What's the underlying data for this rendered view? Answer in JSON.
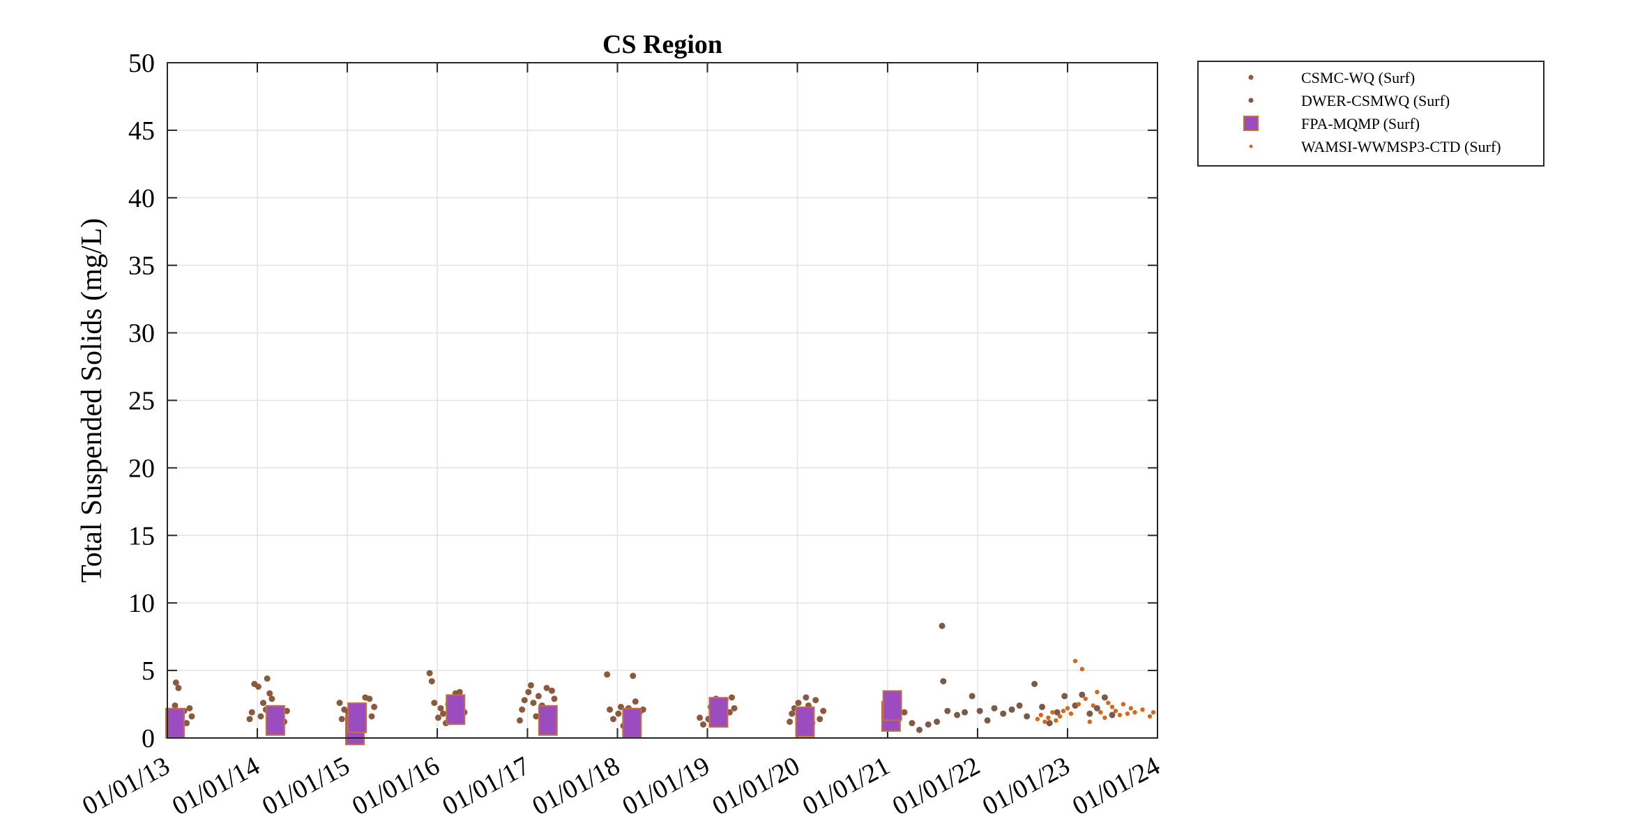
{
  "chart_data": {
    "type": "scatter",
    "title": "CS Region",
    "xlabel": "",
    "ylabel": "Total Suspended Solids (mg/L)",
    "xlim": [
      "2013-01-01",
      "2024-01-01"
    ],
    "ylim": [
      0,
      50
    ],
    "x_tick_labels": [
      "01/01/13",
      "01/01/14",
      "01/01/15",
      "01/01/16",
      "01/01/17",
      "01/01/18",
      "01/01/19",
      "01/01/20",
      "01/01/21",
      "01/01/22",
      "01/01/23",
      "01/01/24"
    ],
    "y_tick_labels": [
      "0",
      "5",
      "10",
      "15",
      "20",
      "25",
      "30",
      "35",
      "40",
      "45",
      "50"
    ],
    "grid": true,
    "legend_position": "outside-top-right",
    "series": [
      {
        "name": "CSMC-WQ (Surf)",
        "marker": "dot",
        "color": "#8b5a3c",
        "points": [
          [
            "2013-01-10",
            1.2
          ],
          [
            "2013-01-20",
            1.8
          ],
          [
            "2013-02-01",
            2.4
          ],
          [
            "2013-02-05",
            4.1
          ],
          [
            "2013-02-15",
            3.7
          ],
          [
            "2013-02-25",
            1.5
          ],
          [
            "2013-03-10",
            2.0
          ],
          [
            "2013-03-20",
            1.1
          ],
          [
            "2013-04-01",
            2.2
          ],
          [
            "2013-04-10",
            1.6
          ],
          [
            "2013-12-01",
            1.4
          ],
          [
            "2013-12-10",
            1.9
          ],
          [
            "2013-12-20",
            4.0
          ],
          [
            "2014-01-05",
            3.8
          ],
          [
            "2014-01-15",
            1.6
          ],
          [
            "2014-01-25",
            2.6
          ],
          [
            "2014-02-05",
            2.1
          ],
          [
            "2014-02-10",
            4.4
          ],
          [
            "2014-02-20",
            3.3
          ],
          [
            "2014-03-01",
            2.9
          ],
          [
            "2014-03-15",
            1.8
          ],
          [
            "2014-04-01",
            2.2
          ],
          [
            "2014-04-20",
            1.2
          ],
          [
            "2014-05-01",
            2.0
          ],
          [
            "2014-12-01",
            2.6
          ],
          [
            "2014-12-10",
            1.4
          ],
          [
            "2014-12-20",
            2.1
          ],
          [
            "2015-01-05",
            1.9
          ],
          [
            "2015-01-15",
            0.9
          ],
          [
            "2015-01-25",
            2.4
          ],
          [
            "2015-02-05",
            1.0
          ],
          [
            "2015-02-15",
            2.2
          ],
          [
            "2015-03-01",
            1.5
          ],
          [
            "2015-03-15",
            3.0
          ],
          [
            "2015-04-01",
            2.9
          ],
          [
            "2015-04-10",
            1.6
          ],
          [
            "2015-04-20",
            2.3
          ],
          [
            "2015-12-01",
            4.8
          ],
          [
            "2015-12-10",
            4.2
          ],
          [
            "2015-12-20",
            2.6
          ],
          [
            "2016-01-05",
            1.5
          ],
          [
            "2016-01-15",
            2.2
          ],
          [
            "2016-01-25",
            1.8
          ],
          [
            "2016-02-05",
            1.1
          ],
          [
            "2016-02-15",
            2.5
          ],
          [
            "2016-03-01",
            2.0
          ],
          [
            "2016-03-15",
            3.3
          ],
          [
            "2016-04-01",
            3.4
          ],
          [
            "2016-04-10",
            2.7
          ],
          [
            "2016-04-20",
            1.9
          ],
          [
            "2016-12-01",
            1.3
          ],
          [
            "2016-12-10",
            2.1
          ],
          [
            "2016-12-20",
            2.8
          ],
          [
            "2017-01-05",
            3.4
          ],
          [
            "2017-01-15",
            3.9
          ],
          [
            "2017-01-25",
            2.6
          ],
          [
            "2017-02-05",
            1.6
          ],
          [
            "2017-02-15",
            3.1
          ],
          [
            "2017-03-01",
            2.4
          ],
          [
            "2017-03-10",
            1.2
          ],
          [
            "2017-03-20",
            3.7
          ],
          [
            "2017-04-01",
            2.0
          ],
          [
            "2017-04-10",
            3.5
          ],
          [
            "2017-04-20",
            2.9
          ],
          [
            "2017-11-20",
            4.7
          ],
          [
            "2017-12-01",
            2.1
          ],
          [
            "2017-12-15",
            1.4
          ],
          [
            "2018-01-05",
            1.8
          ],
          [
            "2018-01-15",
            2.3
          ],
          [
            "2018-01-25",
            0.9
          ],
          [
            "2018-02-05",
            1.5
          ],
          [
            "2018-02-15",
            2.2
          ],
          [
            "2018-02-25",
            1.2
          ],
          [
            "2018-03-05",
            4.6
          ],
          [
            "2018-03-15",
            2.7
          ],
          [
            "2018-04-01",
            1.9
          ],
          [
            "2018-04-15",
            2.1
          ],
          [
            "2018-12-01",
            1.5
          ],
          [
            "2018-12-15",
            1.0
          ],
          [
            "2019-01-05",
            1.4
          ],
          [
            "2019-01-15",
            2.3
          ],
          [
            "2019-01-25",
            1.7
          ],
          [
            "2019-02-05",
            2.9
          ],
          [
            "2019-02-15",
            2.4
          ],
          [
            "2019-03-01",
            1.6
          ],
          [
            "2019-03-15",
            2.8
          ],
          [
            "2019-04-01",
            1.9
          ],
          [
            "2019-04-10",
            3.0
          ],
          [
            "2019-04-20",
            2.2
          ],
          [
            "2019-12-01",
            1.2
          ],
          [
            "2019-12-10",
            1.8
          ],
          [
            "2019-12-20",
            2.2
          ],
          [
            "2020-01-05",
            2.6
          ],
          [
            "2020-01-15",
            1.5
          ],
          [
            "2020-01-25",
            0.9
          ],
          [
            "2020-02-05",
            3.0
          ],
          [
            "2020-02-15",
            2.4
          ],
          [
            "2020-03-01",
            1.1
          ],
          [
            "2020-03-15",
            2.8
          ],
          [
            "2020-04-01",
            1.4
          ],
          [
            "2020-04-15",
            2.0
          ],
          [
            "2021-02-10",
            1.4
          ],
          [
            "2021-03-10",
            1.9
          ],
          [
            "2021-04-10",
            1.1
          ]
        ]
      },
      {
        "name": "DWER-CSMWQ (Surf)",
        "marker": "dot",
        "color": "#7a5a48",
        "points": [
          [
            "2021-05-10",
            0.6
          ],
          [
            "2021-06-15",
            1.0
          ],
          [
            "2021-07-20",
            1.2
          ],
          [
            "2021-08-10",
            8.3
          ],
          [
            "2021-08-15",
            4.2
          ],
          [
            "2021-09-01",
            2.0
          ],
          [
            "2021-10-10",
            1.7
          ],
          [
            "2021-11-10",
            1.9
          ],
          [
            "2021-12-10",
            3.1
          ],
          [
            "2022-01-10",
            2.0
          ],
          [
            "2022-02-10",
            1.3
          ],
          [
            "2022-03-10",
            2.2
          ],
          [
            "2022-04-15",
            1.8
          ],
          [
            "2022-05-20",
            2.1
          ],
          [
            "2022-06-20",
            2.4
          ],
          [
            "2022-07-20",
            1.6
          ],
          [
            "2022-08-20",
            4.0
          ],
          [
            "2022-09-20",
            2.3
          ],
          [
            "2022-10-20",
            1.1
          ],
          [
            "2022-11-20",
            1.9
          ],
          [
            "2022-12-20",
            3.1
          ],
          [
            "2023-02-01",
            2.4
          ],
          [
            "2023-03-01",
            3.2
          ],
          [
            "2023-04-01",
            1.8
          ],
          [
            "2023-05-01",
            2.2
          ],
          [
            "2023-06-01",
            3.0
          ],
          [
            "2023-07-01",
            1.7
          ]
        ]
      },
      {
        "name": "FPA-MQMP (Surf)",
        "marker": "square",
        "color": "#9b4dbf",
        "edge_color": "#c07040",
        "points": [
          [
            "2013-02-01",
            1.1
          ],
          [
            "2014-03-15",
            1.3
          ],
          [
            "2015-02-01",
            0.6
          ],
          [
            "2015-02-10",
            1.5
          ],
          [
            "2016-03-15",
            2.1
          ],
          [
            "2017-03-25",
            1.3
          ],
          [
            "2018-03-01",
            1.1
          ],
          [
            "2019-02-15",
            1.9
          ],
          [
            "2020-02-01",
            1.2
          ],
          [
            "2021-01-15",
            1.6
          ],
          [
            "2021-01-20",
            2.4
          ]
        ]
      },
      {
        "name": "WAMSI-WWMSP3-CTD (Surf)",
        "marker": "small-dot",
        "color": "#d2691e",
        "points": [
          [
            "2022-09-01",
            1.4
          ],
          [
            "2022-09-15",
            1.7
          ],
          [
            "2022-10-01",
            1.2
          ],
          [
            "2022-10-15",
            1.5
          ],
          [
            "2022-11-01",
            1.9
          ],
          [
            "2022-11-15",
            1.3
          ],
          [
            "2022-12-01",
            1.6
          ],
          [
            "2022-12-15",
            2.0
          ],
          [
            "2023-01-01",
            2.2
          ],
          [
            "2023-01-15",
            1.8
          ],
          [
            "2023-02-01",
            5.7
          ],
          [
            "2023-02-15",
            2.5
          ],
          [
            "2023-03-01",
            5.1
          ],
          [
            "2023-03-15",
            2.9
          ],
          [
            "2023-04-01",
            1.2
          ],
          [
            "2023-04-15",
            2.4
          ],
          [
            "2023-05-01",
            3.4
          ],
          [
            "2023-05-15",
            1.9
          ],
          [
            "2023-06-01",
            1.5
          ],
          [
            "2023-06-15",
            2.6
          ],
          [
            "2023-07-01",
            2.3
          ],
          [
            "2023-07-15",
            2.0
          ],
          [
            "2023-08-01",
            1.7
          ],
          [
            "2023-08-15",
            2.5
          ],
          [
            "2023-09-01",
            1.8
          ],
          [
            "2023-09-15",
            2.2
          ],
          [
            "2023-10-01",
            1.9
          ],
          [
            "2023-11-01",
            2.1
          ],
          [
            "2023-12-01",
            1.6
          ],
          [
            "2023-12-15",
            1.9
          ]
        ]
      }
    ]
  }
}
